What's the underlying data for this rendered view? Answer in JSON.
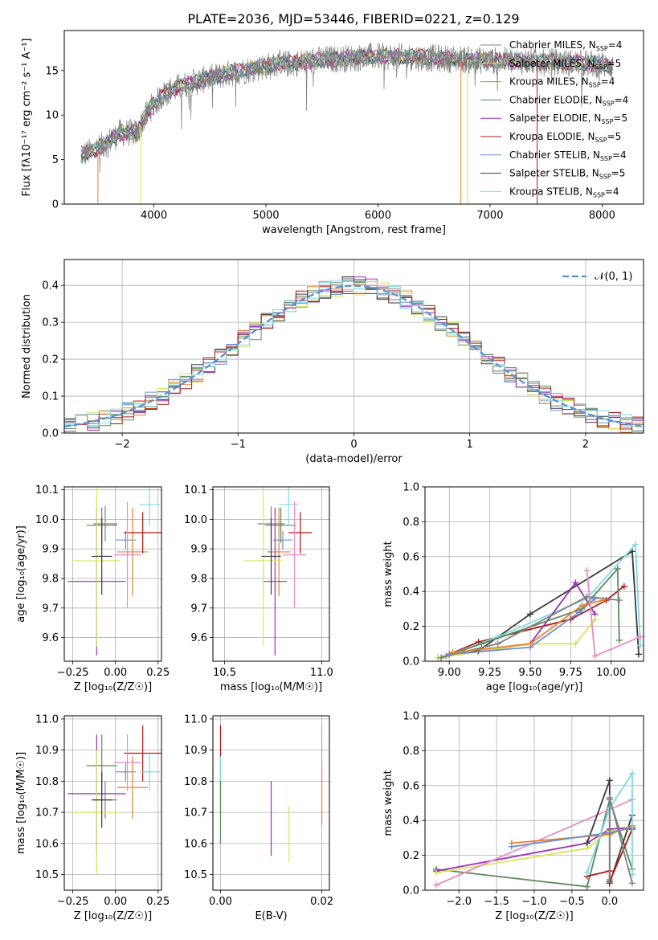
{
  "figure": {
    "title": "PLATE=2036, MJD=53446, FIBERID=0221, z=0.129"
  },
  "colors": {
    "Chabrier MILES": "#808080",
    "Salpeter MILES": "#6b8fd6",
    "Kroupa MILES": "#e6812b",
    "Chabrier ELODIE": "#5a8a5a",
    "Salpeter ELODIE": "#9b30b8",
    "Kroupa ELODIE": "#d6e65a",
    "Chabrier STELIB": "#3a3a3a",
    "Salpeter STELIB": "#b01818",
    "Kroupa STELIB": "#7fdbe0",
    "pink": "#e68cc2",
    "gaussian": "#5a8fd6"
  },
  "chart_data": [
    {
      "id": "spectrum",
      "type": "line",
      "title": "PLATE=2036, MJD=53446, FIBERID=0221, z=0.129",
      "xlabel": "wavelength [Angstrom, rest frame]",
      "ylabel": "Flux [fλ10⁻¹⁷ erg cm⁻² s⁻¹ A⁻¹]",
      "xlim": [
        3200,
        8370
      ],
      "ylim": [
        0,
        19.5
      ],
      "xticks": [
        "4000",
        "5000",
        "6000",
        "7000",
        "8000"
      ],
      "yticks": [
        "0",
        "5",
        "10",
        "15"
      ],
      "legend_position": "top-right",
      "legend": [
        "Chabrier MILES, N_SSP=4",
        "Salpeter MILES, N_SSP=5",
        "Kroupa MILES, N_SSP=4",
        "Chabrier ELODIE, N_SSP=4",
        "Salpeter ELODIE, N_SSP=5",
        "Kroupa ELODIE, N_SSP=5",
        "Chabrier STELIB, N_SSP=4",
        "Salpeter STELIB, N_SSP=5",
        "Kroupa STELIB, N_SSP=4"
      ],
      "continuum": [
        [
          3350,
          5.5
        ],
        [
          3500,
          6.2
        ],
        [
          3700,
          8
        ],
        [
          3850,
          8
        ],
        [
          3950,
          10.5
        ],
        [
          4100,
          12.5
        ],
        [
          4300,
          13.5
        ],
        [
          4600,
          14.5
        ],
        [
          5000,
          15.5
        ],
        [
          5500,
          16.2
        ],
        [
          6000,
          16.6
        ],
        [
          6500,
          16.4
        ],
        [
          7000,
          16.1
        ],
        [
          7500,
          16
        ],
        [
          8000,
          15.7
        ],
        [
          8100,
          15.5
        ]
      ],
      "drops": [
        {
          "series": "Kroupa MILES",
          "x": 3500
        },
        {
          "series": "Kroupa ELODIE",
          "x": 3880
        },
        {
          "series": "Kroupa ELODIE",
          "x": 6800
        },
        {
          "series": "Salpeter STELIB",
          "x": 7420
        },
        {
          "series": "Kroupa MILES",
          "x": 6740
        }
      ]
    },
    {
      "id": "residuals",
      "type": "histogram",
      "xlabel": "(data-model)/error",
      "ylabel": "Normed distribution",
      "xlim": [
        -2.5,
        2.5
      ],
      "ylim": [
        0,
        0.47
      ],
      "xticks": [
        "-2",
        "-1",
        "0",
        "1",
        "2"
      ],
      "yticks": [
        "0.0",
        "0.1",
        "0.2",
        "0.3",
        "0.4"
      ],
      "bin_width": 0.1,
      "grid": true,
      "legend_position": "top-right",
      "legend": [
        "𝒩(0, 1)"
      ]
    },
    {
      "id": "age-vs-Z",
      "type": "scatter",
      "xlabel": "Z [log₁₀(Z/Z☉)]",
      "ylabel": "age [log₁₀(age/yr)]",
      "xlim": [
        -0.3,
        0.27
      ],
      "ylim": [
        9.52,
        10.11
      ],
      "xticks": [
        "-0.25",
        "0.00",
        "0.25"
      ],
      "yticks": [
        "9.6",
        "9.7",
        "9.8",
        "9.9",
        "10.0",
        "10.1"
      ],
      "grid": true,
      "points": [
        {
          "c": "Chabrier MILES",
          "x": -0.06,
          "y": 9.985,
          "xe": 0.07,
          "ye": 0.06
        },
        {
          "c": "Salpeter MILES",
          "x": 0.06,
          "y": 9.93,
          "xe": 0.06,
          "ye": 0.03
        },
        {
          "c": "Kroupa MILES",
          "x": 0.1,
          "y": 9.89,
          "xe": 0.09,
          "ye": 0.15
        },
        {
          "c": "Chabrier ELODIE",
          "x": -0.08,
          "y": 9.98,
          "xe": 0.09,
          "ye": 0.06
        },
        {
          "c": "Salpeter ELODIE",
          "x": -0.11,
          "y": 9.79,
          "xe": 0.17,
          "ye": 0.25
        },
        {
          "c": "Kroupa ELODIE",
          "x": -0.11,
          "y": 9.86,
          "xe": 0.14,
          "ye": 0.29
        },
        {
          "c": "Chabrier STELIB",
          "x": -0.08,
          "y": 9.875,
          "xe": 0.06,
          "ye": 0.13
        },
        {
          "c": "Salpeter STELIB",
          "x": 0.16,
          "y": 9.955,
          "xe": 0.11,
          "ye": 0.07
        },
        {
          "c": "Kroupa STELIB",
          "x": 0.2,
          "y": 10.05,
          "xe": 0.06,
          "ye": 0.07
        },
        {
          "c": "pink",
          "x": 0.07,
          "y": 9.88,
          "xe": 0.08,
          "ye": 0.18
        }
      ]
    },
    {
      "id": "age-vs-mass",
      "type": "scatter",
      "xlabel": "mass [log₁₀(M/M☉)]",
      "ylabel": "",
      "xlim": [
        10.44,
        11.04
      ],
      "ylim": [
        9.52,
        10.11
      ],
      "xticks": [
        "10.5",
        "11.0"
      ],
      "yticks": [
        "9.6",
        "9.7",
        "9.8",
        "9.9",
        "10.0",
        "10.1"
      ],
      "grid": true,
      "points": [
        {
          "c": "Chabrier MILES",
          "x": 10.74,
          "y": 9.985,
          "xe": 0.07,
          "ye": 0.06
        },
        {
          "c": "Salpeter MILES",
          "x": 10.8,
          "y": 9.93,
          "xe": 0.05,
          "ye": 0.03
        },
        {
          "c": "Kroupa MILES",
          "x": 10.78,
          "y": 9.89,
          "xe": 0.06,
          "ye": 0.15
        },
        {
          "c": "Chabrier ELODIE",
          "x": 10.79,
          "y": 9.98,
          "xe": 0.08,
          "ye": 0.06
        },
        {
          "c": "Salpeter ELODIE",
          "x": 10.76,
          "y": 9.79,
          "xe": 0.06,
          "ye": 0.25
        },
        {
          "c": "Kroupa ELODIE",
          "x": 10.7,
          "y": 9.86,
          "xe": 0.1,
          "ye": 0.29
        },
        {
          "c": "Chabrier STELIB",
          "x": 10.74,
          "y": 9.875,
          "xe": 0.05,
          "ye": 0.13
        },
        {
          "c": "Salpeter STELIB",
          "x": 10.89,
          "y": 9.955,
          "xe": 0.06,
          "ye": 0.07
        },
        {
          "c": "Kroupa STELIB",
          "x": 10.83,
          "y": 10.05,
          "xe": 0.05,
          "ye": 0.07
        },
        {
          "c": "pink",
          "x": 10.86,
          "y": 9.88,
          "xe": 0.06,
          "ye": 0.18
        }
      ]
    },
    {
      "id": "weight-vs-age",
      "type": "line",
      "xlabel": "age [log₁₀(age/yr)]",
      "ylabel": "mass weight",
      "xlim": [
        8.85,
        10.2
      ],
      "ylim": [
        0,
        1
      ],
      "xticks": [
        "9.00",
        "9.25",
        "9.50",
        "9.75",
        "10.00"
      ],
      "yticks": [
        "0.0",
        "0.2",
        "0.4",
        "0.6",
        "0.8",
        "1.0"
      ],
      "grid": true,
      "series": [
        {
          "c": "Chabrier STELIB",
          "pts": [
            [
              8.93,
              0.02
            ],
            [
              9.18,
              0.06
            ],
            [
              9.5,
              0.27
            ],
            [
              10.13,
              0.63
            ],
            [
              10.17,
              0.04
            ]
          ]
        },
        {
          "c": "Salpeter STELIB",
          "pts": [
            [
              9.0,
              0.04
            ],
            [
              9.18,
              0.11
            ],
            [
              9.75,
              0.24
            ],
            [
              9.97,
              0.35
            ],
            [
              10.08,
              0.43
            ]
          ]
        },
        {
          "c": "Kroupa STELIB",
          "pts": [
            [
              8.95,
              0.02
            ],
            [
              9.3,
              0.14
            ],
            [
              9.85,
              0.36
            ],
            [
              10.15,
              0.67
            ],
            [
              10.18,
              0.09
            ]
          ]
        },
        {
          "c": "Salpeter ELODIE",
          "pts": [
            [
              8.93,
              0.02
            ],
            [
              9.5,
              0.1
            ],
            [
              9.78,
              0.45
            ],
            [
              9.9,
              0.27
            ]
          ]
        },
        {
          "c": "Kroupa ELODIE",
          "pts": [
            [
              8.93,
              0.02
            ],
            [
              9.5,
              0.1
            ],
            [
              9.78,
              0.1
            ],
            [
              9.9,
              0.24
            ]
          ]
        },
        {
          "c": "Chabrier ELODIE",
          "pts": [
            [
              8.95,
              0.02
            ],
            [
              9.2,
              0.1
            ],
            [
              9.82,
              0.3
            ],
            [
              10.04,
              0.53
            ],
            [
              10.05,
              0.12
            ]
          ]
        },
        {
          "c": "Chabrier MILES",
          "pts": [
            [
              8.98,
              0.03
            ],
            [
              9.3,
              0.1
            ],
            [
              9.85,
              0.37
            ],
            [
              10.05,
              0.35
            ]
          ]
        },
        {
          "c": "Salpeter MILES",
          "pts": [
            [
              9.0,
              0.04
            ],
            [
              9.5,
              0.08
            ],
            [
              9.8,
              0.28
            ],
            [
              9.9,
              0.36
            ]
          ]
        },
        {
          "c": "Kroupa MILES",
          "pts": [
            [
              9.02,
              0.05
            ],
            [
              9.5,
              0.1
            ],
            [
              9.82,
              0.32
            ],
            [
              9.95,
              0.35
            ]
          ]
        },
        {
          "c": "pink",
          "pts": [
            [
              9.85,
              0.52
            ],
            [
              9.9,
              0.03
            ],
            [
              10.18,
              0.14
            ]
          ]
        }
      ]
    },
    {
      "id": "mass-vs-Z",
      "type": "scatter",
      "xlabel": "Z [log₁₀(Z/Z☉)]",
      "ylabel": "mass [log₁₀(M/M☉)]",
      "xlim": [
        -0.3,
        0.27
      ],
      "ylim": [
        10.45,
        11.01
      ],
      "xticks": [
        "-0.25",
        "0.00",
        "0.25"
      ],
      "yticks": [
        "10.5",
        "10.6",
        "10.7",
        "10.8",
        "10.9",
        "11.0"
      ],
      "grid": true,
      "points": [
        {
          "c": "Chabrier MILES",
          "x": -0.06,
          "y": 10.74,
          "xe": 0.07,
          "ye": 0.06
        },
        {
          "c": "Salpeter MILES",
          "x": 0.06,
          "y": 10.83,
          "xe": 0.06,
          "ye": 0.03
        },
        {
          "c": "Kroupa MILES",
          "x": 0.1,
          "y": 10.78,
          "xe": 0.09,
          "ye": 0.1
        },
        {
          "c": "Chabrier ELODIE",
          "x": -0.08,
          "y": 10.85,
          "xe": 0.09,
          "ye": 0.1
        },
        {
          "c": "Salpeter ELODIE",
          "x": -0.11,
          "y": 10.76,
          "xe": 0.17,
          "ye": 0.19
        },
        {
          "c": "Kroupa ELODIE",
          "x": -0.11,
          "y": 10.7,
          "xe": 0.14,
          "ye": 0.2
        },
        {
          "c": "Chabrier STELIB",
          "x": -0.08,
          "y": 10.74,
          "xe": 0.06,
          "ye": 0.09
        },
        {
          "c": "Salpeter STELIB",
          "x": 0.16,
          "y": 10.89,
          "xe": 0.11,
          "ye": 0.09
        },
        {
          "c": "Kroupa STELIB",
          "x": 0.2,
          "y": 10.83,
          "xe": 0.06,
          "ye": 0.06
        },
        {
          "c": "pink",
          "x": 0.07,
          "y": 10.86,
          "xe": 0.08,
          "ye": 0.09
        }
      ]
    },
    {
      "id": "mass-vs-EBV",
      "type": "scatter",
      "xlabel": "E(B-V)",
      "ylabel": "",
      "xlim": [
        -0.0015,
        0.0215
      ],
      "ylim": [
        10.45,
        11.01
      ],
      "xticks": [
        "0.00",
        "0.02"
      ],
      "yticks": [
        "10.5",
        "10.6",
        "10.7",
        "10.8",
        "10.9",
        "11.0"
      ],
      "grid": true,
      "points": [
        {
          "c": "Salpeter STELIB",
          "x": 0.0,
          "y": 10.88,
          "ye": 0.1
        },
        {
          "c": "Kroupa STELIB",
          "x": 0.0,
          "y": 10.8,
          "ye": 0.08
        },
        {
          "c": "Chabrier ELODIE",
          "x": 0.0,
          "y": 10.7,
          "ye": 0.1
        },
        {
          "c": "Salpeter ELODIE",
          "x": 0.01,
          "y": 10.68,
          "ye": 0.12
        },
        {
          "c": "Kroupa ELODIE",
          "x": 0.0135,
          "y": 10.63,
          "ye": 0.09
        },
        {
          "c": "Kroupa MILES",
          "x": 0.02,
          "y": 10.76,
          "ye": 0.1
        },
        {
          "c": "pink",
          "x": 0.02,
          "y": 10.9,
          "ye": 0.08
        }
      ]
    },
    {
      "id": "weight-vs-Z",
      "type": "line",
      "xlabel": "Z [log₁₀(Z/Z☉)]",
      "ylabel": "mass weight",
      "xlim": [
        -2.45,
        0.45
      ],
      "ylim": [
        0,
        1
      ],
      "xticks": [
        "-2.0",
        "-1.5",
        "-1.0",
        "-0.5",
        "0.0"
      ],
      "yticks": [
        "0.0",
        "0.2",
        "0.4",
        "0.6",
        "0.8",
        "1.0"
      ],
      "grid": true,
      "series": [
        {
          "c": "Chabrier ELODIE",
          "pts": [
            [
              -2.3,
              0.12
            ],
            [
              -0.3,
              0.02
            ],
            [
              0.0,
              0.52
            ],
            [
              0.3,
              0.12
            ]
          ]
        },
        {
          "c": "Salpeter ELODIE",
          "pts": [
            [
              -2.3,
              0.11
            ],
            [
              -0.3,
              0.27
            ],
            [
              0.0,
              0.35
            ],
            [
              0.3,
              0.36
            ]
          ]
        },
        {
          "c": "Kroupa ELODIE",
          "pts": [
            [
              -2.3,
              0.1
            ],
            [
              -0.3,
              0.24
            ],
            [
              0.0,
              0.34
            ],
            [
              0.3,
              0.35
            ]
          ]
        },
        {
          "c": "pink",
          "pts": [
            [
              -2.3,
              0.03
            ],
            [
              0.3,
              0.52
            ]
          ]
        },
        {
          "c": "Chabrier STELIB",
          "pts": [
            [
              -0.3,
              0.27
            ],
            [
              0.0,
              0.63
            ],
            [
              0.0,
              0.04
            ],
            [
              0.3,
              0.43
            ]
          ]
        },
        {
          "c": "Salpeter STELIB",
          "pts": [
            [
              -0.3,
              0.08
            ],
            [
              0.0,
              0.11
            ],
            [
              0.0,
              0.05
            ],
            [
              0.3,
              0.35
            ]
          ]
        },
        {
          "c": "Kroupa MILES",
          "pts": [
            [
              -1.3,
              0.27
            ],
            [
              0.0,
              0.32
            ],
            [
              0.3,
              0.37
            ]
          ]
        },
        {
          "c": "Salpeter MILES",
          "pts": [
            [
              -1.3,
              0.25
            ],
            [
              0.0,
              0.33
            ],
            [
              0.3,
              0.36
            ]
          ]
        },
        {
          "c": "Kroupa STELIB",
          "pts": [
            [
              -0.3,
              0.1
            ],
            [
              0.0,
              0.47
            ],
            [
              0.3,
              0.67
            ],
            [
              0.3,
              0.09
            ]
          ]
        },
        {
          "c": "Chabrier MILES",
          "pts": [
            [
              0.0,
              0.06
            ],
            [
              0.0,
              0.53
            ],
            [
              0.3,
              0.04
            ]
          ]
        }
      ]
    }
  ]
}
